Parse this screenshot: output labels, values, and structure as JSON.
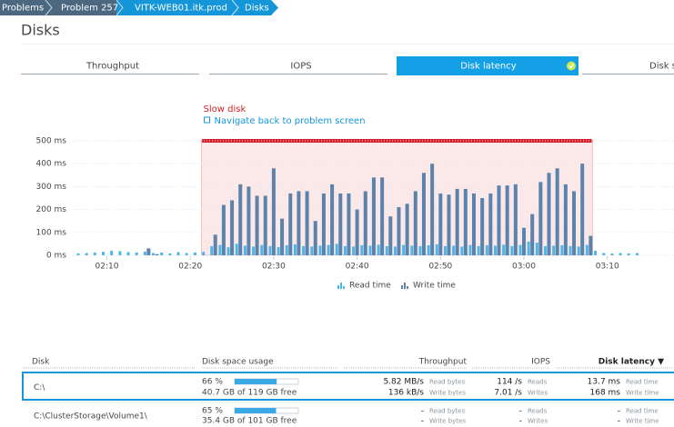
{
  "breadcrumb": [
    "Problems",
    "Problem 257",
    "VITK-WEB01.itk.prod",
    "Disks"
  ],
  "page_title": "Disks",
  "tabs": [
    "Throughput",
    "IOPS",
    "Disk latency",
    "Disk space"
  ],
  "active_tab": 2,
  "chart_data": {
    "type": "bar",
    "annotation": "Slow disk",
    "link": "Navigate back to problem screen",
    "highlight": {
      "start": "02:22",
      "end": "03:08",
      "color": "#d71f2b"
    },
    "x": [
      "02:07",
      "02:08",
      "02:09",
      "02:10",
      "02:11",
      "02:12",
      "02:13",
      "02:14",
      "02:15",
      "02:16",
      "02:17",
      "02:18",
      "02:19",
      "02:20",
      "02:21",
      "02:22",
      "02:23",
      "02:24",
      "02:25",
      "02:26",
      "02:27",
      "02:28",
      "02:29",
      "02:30",
      "02:31",
      "02:32",
      "02:33",
      "02:34",
      "02:35",
      "02:36",
      "02:37",
      "02:38",
      "02:39",
      "02:40",
      "02:41",
      "02:42",
      "02:43",
      "02:44",
      "02:45",
      "02:46",
      "02:47",
      "02:48",
      "02:49",
      "02:50",
      "02:51",
      "02:52",
      "02:53",
      "02:54",
      "02:55",
      "02:56",
      "02:57",
      "02:58",
      "02:59",
      "03:00",
      "03:01",
      "03:02",
      "03:03",
      "03:04",
      "03:05",
      "03:06",
      "03:07",
      "03:08",
      "03:09",
      "03:10",
      "03:11",
      "03:12",
      "03:13",
      "03:14"
    ],
    "xticks": [
      "02:10",
      "02:20",
      "02:30",
      "02:40",
      "02:50",
      "03:00",
      "03:10"
    ],
    "ylim": [
      0,
      500
    ],
    "yticks": [
      {
        "value": 0,
        "label": "0 ms"
      },
      {
        "value": 100,
        "label": "100 ms"
      },
      {
        "value": 200,
        "label": "200 ms"
      },
      {
        "value": 300,
        "label": "300 ms"
      },
      {
        "value": 400,
        "label": "400 ms"
      },
      {
        "value": 500,
        "label": "500 ms"
      }
    ],
    "grid": true,
    "series": [
      {
        "name": "Read time",
        "color": "#4fb6e8",
        "values": [
          8,
          10,
          12,
          15,
          20,
          18,
          14,
          12,
          16,
          10,
          12,
          8,
          14,
          10,
          12,
          15,
          40,
          45,
          35,
          50,
          42,
          38,
          45,
          40,
          36,
          44,
          48,
          40,
          38,
          42,
          45,
          50,
          40,
          38,
          44,
          42,
          46,
          40,
          38,
          45,
          42,
          40,
          44,
          48,
          40,
          42,
          38,
          45,
          40,
          44,
          42,
          46,
          40,
          45,
          60,
          55,
          40,
          42,
          44,
          40,
          38,
          45,
          20,
          10,
          8,
          10,
          8,
          10
        ]
      },
      {
        "name": "Write time",
        "color": "#5b83ab",
        "values": [
          0,
          0,
          0,
          0,
          0,
          0,
          0,
          0,
          30,
          5,
          0,
          0,
          0,
          0,
          0,
          0,
          90,
          220,
          240,
          310,
          300,
          260,
          260,
          380,
          160,
          270,
          280,
          280,
          150,
          270,
          310,
          270,
          270,
          200,
          280,
          340,
          340,
          170,
          210,
          225,
          280,
          360,
          400,
          270,
          265,
          290,
          290,
          270,
          250,
          270,
          305,
          305,
          310,
          120,
          180,
          320,
          360,
          380,
          310,
          280,
          400,
          85,
          0,
          0,
          0,
          0,
          0,
          0
        ]
      }
    ]
  },
  "table": {
    "headers": [
      "Disk",
      "Disk space usage",
      "Throughput",
      "IOPS",
      "Disk latency ▼"
    ],
    "rows": [
      {
        "disk": "C:\\",
        "usage": 66,
        "usage_label": "66 %",
        "free": "40.7 GB of 119 GB free",
        "throughput": [
          [
            "5.82 MB/s",
            "Read bytes"
          ],
          [
            "136 kB/s",
            "Write bytes"
          ]
        ],
        "iops": [
          [
            "114 /s",
            "Reads"
          ],
          [
            "7.01 /s",
            "Writes"
          ]
        ],
        "latency": [
          [
            "13.7 ms",
            "Read time"
          ],
          [
            "168 ms",
            "Write time"
          ]
        ]
      },
      {
        "disk": "C:\\ClusterStorage\\Volume1\\",
        "usage": 65,
        "usage_label": "65 %",
        "free": "35.4 GB of 101 GB free",
        "throughput": [
          [
            "-",
            "Read bytes"
          ],
          [
            "-",
            "Write bytes"
          ]
        ],
        "iops": [
          [
            "-",
            "Reads"
          ],
          [
            "-",
            "Writes"
          ]
        ],
        "latency": [
          [
            "-",
            "Read time"
          ],
          [
            "-",
            "Write time"
          ]
        ]
      }
    ]
  }
}
